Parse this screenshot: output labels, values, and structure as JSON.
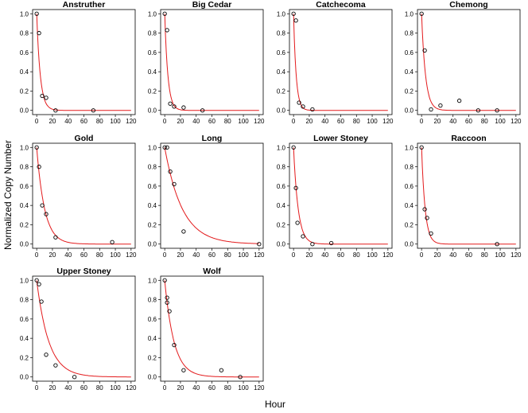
{
  "figure": {
    "xlabel": "Hour",
    "ylabel": "Normalized Copy Number"
  },
  "chart_data": [
    {
      "type": "scatter",
      "title": "Anstruther",
      "xlim": [
        0,
        120
      ],
      "ylim": [
        0,
        1
      ],
      "xticks": [
        "0",
        "20",
        "40",
        "60",
        "80",
        "100",
        "120"
      ],
      "yticks": [
        "0.0",
        "0.2",
        "0.4",
        "0.6",
        "0.8",
        "1.0"
      ],
      "points": [
        [
          0,
          1.0
        ],
        [
          3,
          0.8
        ],
        [
          7,
          0.15
        ],
        [
          12,
          0.13
        ],
        [
          24,
          0.0
        ],
        [
          72,
          0.0
        ]
      ],
      "fit_decay_rate": 0.22
    },
    {
      "type": "scatter",
      "title": "Big Cedar",
      "xlim": [
        0,
        120
      ],
      "ylim": [
        0,
        1
      ],
      "xticks": [
        "0",
        "20",
        "40",
        "60",
        "80",
        "100",
        "120"
      ],
      "yticks": [
        "0.0",
        "0.2",
        "0.4",
        "0.6",
        "0.8",
        "1.0"
      ],
      "points": [
        [
          0,
          1.0
        ],
        [
          3,
          0.83
        ],
        [
          7,
          0.07
        ],
        [
          12,
          0.04
        ],
        [
          24,
          0.03
        ],
        [
          48,
          0.0
        ]
      ],
      "fit_decay_rate": 0.25
    },
    {
      "type": "scatter",
      "title": "Catchecoma",
      "xlim": [
        0,
        120
      ],
      "ylim": [
        0,
        1
      ],
      "xticks": [
        "0",
        "20",
        "40",
        "60",
        "80",
        "100",
        "120"
      ],
      "yticks": [
        "0.0",
        "0.2",
        "0.4",
        "0.6",
        "0.8",
        "1.0"
      ],
      "points": [
        [
          0,
          1.0
        ],
        [
          3,
          0.93
        ],
        [
          7,
          0.08
        ],
        [
          12,
          0.04
        ],
        [
          24,
          0.01
        ]
      ],
      "fit_decay_rate": 0.3
    },
    {
      "type": "scatter",
      "title": "Chemong",
      "xlim": [
        0,
        120
      ],
      "ylim": [
        0,
        1
      ],
      "xticks": [
        "0",
        "20",
        "40",
        "60",
        "80",
        "100",
        "120"
      ],
      "yticks": [
        "0.0",
        "0.2",
        "0.4",
        "0.6",
        "0.8",
        "1.0"
      ],
      "points": [
        [
          0,
          1.0
        ],
        [
          4,
          0.62
        ],
        [
          12,
          0.01
        ],
        [
          24,
          0.05
        ],
        [
          48,
          0.1
        ],
        [
          72,
          0.0
        ],
        [
          96,
          0.0
        ]
      ],
      "fit_decay_rate": 0.2
    },
    {
      "type": "scatter",
      "title": "Gold",
      "xlim": [
        0,
        120
      ],
      "ylim": [
        0,
        1
      ],
      "xticks": [
        "0",
        "20",
        "40",
        "60",
        "80",
        "100",
        "120"
      ],
      "yticks": [
        "0.0",
        "0.2",
        "0.4",
        "0.6",
        "0.8",
        "1.0"
      ],
      "points": [
        [
          0,
          1.0
        ],
        [
          3,
          0.8
        ],
        [
          7,
          0.4
        ],
        [
          12,
          0.31
        ],
        [
          24,
          0.07
        ],
        [
          96,
          0.02
        ]
      ],
      "fit_decay_rate": 0.1
    },
    {
      "type": "scatter",
      "title": "Long",
      "xlim": [
        0,
        120
      ],
      "ylim": [
        0,
        1
      ],
      "xticks": [
        "0",
        "20",
        "40",
        "60",
        "80",
        "100",
        "120"
      ],
      "yticks": [
        "0.0",
        "0.2",
        "0.4",
        "0.6",
        "0.8",
        "1.0"
      ],
      "points": [
        [
          0,
          1.0
        ],
        [
          3,
          1.0
        ],
        [
          7,
          0.75
        ],
        [
          12,
          0.62
        ],
        [
          24,
          0.13
        ],
        [
          120,
          0.0
        ]
      ],
      "fit_decay_rate": 0.045
    },
    {
      "type": "scatter",
      "title": "Lower Stoney",
      "xlim": [
        0,
        120
      ],
      "ylim": [
        0,
        1
      ],
      "xticks": [
        "0",
        "20",
        "40",
        "60",
        "80",
        "100",
        "120"
      ],
      "yticks": [
        "0.0",
        "0.2",
        "0.4",
        "0.6",
        "0.8",
        "1.0"
      ],
      "points": [
        [
          0,
          1.0
        ],
        [
          3,
          0.58
        ],
        [
          5,
          0.22
        ],
        [
          12,
          0.08
        ],
        [
          24,
          0.0
        ],
        [
          48,
          0.01
        ]
      ],
      "fit_decay_rate": 0.17
    },
    {
      "type": "scatter",
      "title": "Raccoon",
      "xlim": [
        0,
        120
      ],
      "ylim": [
        0,
        1
      ],
      "xticks": [
        "0",
        "20",
        "40",
        "60",
        "80",
        "100",
        "120"
      ],
      "yticks": [
        "0.0",
        "0.2",
        "0.4",
        "0.6",
        "0.8",
        "1.0"
      ],
      "points": [
        [
          0,
          1.0
        ],
        [
          4,
          0.36
        ],
        [
          7,
          0.27
        ],
        [
          12,
          0.11
        ],
        [
          96,
          0.0
        ]
      ],
      "fit_decay_rate": 0.22
    },
    {
      "type": "scatter",
      "title": "Upper Stoney",
      "xlim": [
        0,
        120
      ],
      "ylim": [
        0,
        1
      ],
      "xticks": [
        "0",
        "20",
        "40",
        "60",
        "80",
        "100",
        "120"
      ],
      "yticks": [
        "0.0",
        "0.2",
        "0.4",
        "0.6",
        "0.8",
        "1.0"
      ],
      "points": [
        [
          0,
          1.0
        ],
        [
          3,
          0.96
        ],
        [
          6,
          0.78
        ],
        [
          12,
          0.23
        ],
        [
          24,
          0.12
        ],
        [
          48,
          0.0
        ]
      ],
      "fit_decay_rate": 0.065
    },
    {
      "type": "scatter",
      "title": "Wolf",
      "xlim": [
        0,
        120
      ],
      "ylim": [
        0,
        1
      ],
      "xticks": [
        "0",
        "20",
        "40",
        "60",
        "80",
        "100",
        "120"
      ],
      "yticks": [
        "0.0",
        "0.2",
        "0.4",
        "0.6",
        "0.8",
        "1.0"
      ],
      "points": [
        [
          0,
          1.0
        ],
        [
          3,
          0.82
        ],
        [
          3,
          0.77
        ],
        [
          6,
          0.68
        ],
        [
          12,
          0.33
        ],
        [
          24,
          0.07
        ],
        [
          72,
          0.07
        ],
        [
          96,
          0.0
        ]
      ],
      "fit_decay_rate": 0.085
    }
  ]
}
